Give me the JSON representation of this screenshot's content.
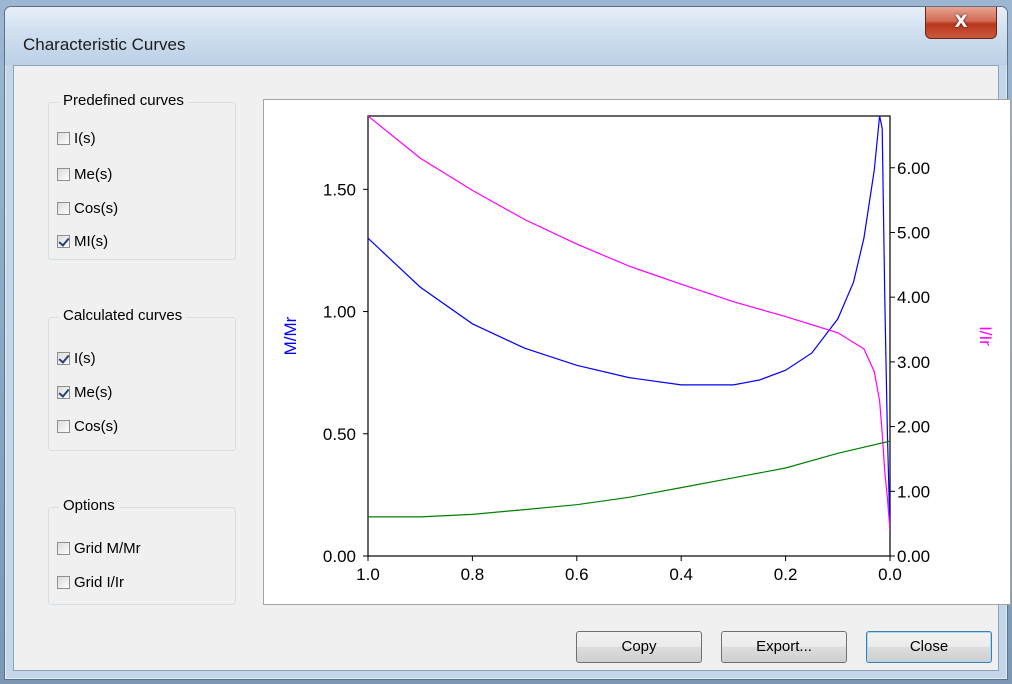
{
  "window": {
    "title": "Characteristic Curves",
    "close_glyph": "X"
  },
  "groups": {
    "predefined": {
      "title": "Predefined curves",
      "items": [
        {
          "label": "I(s)",
          "checked": false
        },
        {
          "label": "Me(s)",
          "checked": false
        },
        {
          "label": "Cos(s)",
          "checked": false
        },
        {
          "label": "MI(s)",
          "checked": true
        }
      ]
    },
    "calculated": {
      "title": "Calculated curves",
      "items": [
        {
          "label": "I(s)",
          "checked": true
        },
        {
          "label": "Me(s)",
          "checked": true
        },
        {
          "label": "Cos(s)",
          "checked": false
        }
      ]
    },
    "options": {
      "title": "Options",
      "items": [
        {
          "label": "Grid M/Mr",
          "checked": false
        },
        {
          "label": "Grid I/Ir",
          "checked": false
        }
      ]
    }
  },
  "buttons": {
    "copy": "Copy",
    "export": "Export...",
    "close": "Close"
  },
  "chart_data": {
    "type": "line",
    "title": "",
    "xlabel": "",
    "ylabel": "M/Mr",
    "y2label": "I/Ir",
    "xlim": [
      1.0,
      0.0
    ],
    "ylim": [
      0.0,
      1.8
    ],
    "y2lim": [
      0.0,
      6.8
    ],
    "xticks": [
      "1.0",
      "0.8",
      "0.6",
      "0.4",
      "0.2",
      "0.0"
    ],
    "yticks": [
      "0.00",
      "0.50",
      "1.00",
      "1.50"
    ],
    "y2ticks": [
      "0.00",
      "1.00",
      "2.00",
      "3.00",
      "4.00",
      "5.00",
      "6.00"
    ],
    "grid": false,
    "colors": {
      "ylabel": "#0000ff",
      "y2label": "#ff00ff"
    },
    "series": [
      {
        "color": "#0000ff",
        "axis": "left",
        "x": [
          1.0,
          0.9,
          0.8,
          0.7,
          0.6,
          0.5,
          0.4,
          0.3,
          0.25,
          0.2,
          0.15,
          0.1,
          0.07,
          0.05,
          0.03,
          0.02,
          0.015,
          0.01,
          0.005,
          0.0
        ],
        "y": [
          1.3,
          1.1,
          0.95,
          0.85,
          0.78,
          0.73,
          0.7,
          0.7,
          0.72,
          0.76,
          0.83,
          0.97,
          1.12,
          1.3,
          1.58,
          1.8,
          1.75,
          1.05,
          0.5,
          0.1
        ]
      },
      {
        "color": "#ff00ff",
        "axis": "right",
        "x": [
          1.0,
          0.9,
          0.8,
          0.7,
          0.6,
          0.5,
          0.4,
          0.3,
          0.2,
          0.1,
          0.05,
          0.03,
          0.02,
          0.015,
          0.01,
          0.005,
          0.0
        ],
        "y": [
          6.8,
          6.15,
          5.65,
          5.2,
          4.82,
          4.48,
          4.2,
          3.93,
          3.7,
          3.45,
          3.2,
          2.85,
          2.4,
          1.9,
          1.3,
          0.9,
          0.4
        ]
      },
      {
        "color": "#008000",
        "axis": "left",
        "x": [
          1.0,
          0.9,
          0.8,
          0.7,
          0.6,
          0.5,
          0.4,
          0.3,
          0.2,
          0.1,
          0.0
        ],
        "y": [
          0.16,
          0.16,
          0.17,
          0.19,
          0.21,
          0.24,
          0.28,
          0.32,
          0.36,
          0.42,
          0.47
        ]
      }
    ]
  }
}
